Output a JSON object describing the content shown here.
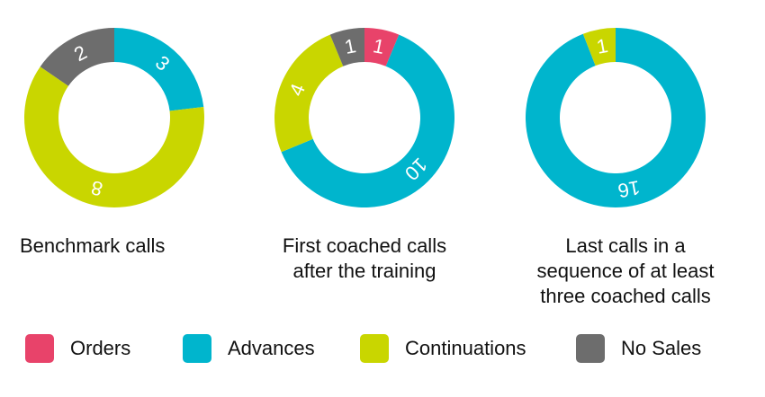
{
  "colors": {
    "orders": "#E8436A",
    "advances": "#00B5CD",
    "continuations": "#C9D600",
    "no_sales": "#6D6D6D"
  },
  "legend": [
    {
      "key": "orders",
      "label": "Orders",
      "color": "#E8436A"
    },
    {
      "key": "advances",
      "label": "Advances",
      "color": "#00B5CD"
    },
    {
      "key": "continuations",
      "label": "Continuations",
      "color": "#C9D600"
    },
    {
      "key": "no_sales",
      "label": "No Sales",
      "color": "#6D6D6D"
    }
  ],
  "captions": [
    "Benchmark calls",
    "First coached calls\nafter the training",
    "Last calls in a\nsequence of at least\nthree coached calls"
  ],
  "chart_data": [
    {
      "type": "pie",
      "title": "Benchmark calls",
      "donut": true,
      "slices": [
        {
          "label": "Advances",
          "value": 3,
          "color": "#00B5CD"
        },
        {
          "label": "Continuations",
          "value": 8,
          "color": "#C9D600"
        },
        {
          "label": "No Sales",
          "value": 2,
          "color": "#6D6D6D"
        }
      ]
    },
    {
      "type": "pie",
      "title": "First coached calls after the training",
      "donut": true,
      "slices": [
        {
          "label": "Orders",
          "value": 1,
          "color": "#E8436A"
        },
        {
          "label": "Advances",
          "value": 10,
          "color": "#00B5CD"
        },
        {
          "label": "Continuations",
          "value": 4,
          "color": "#C9D600"
        },
        {
          "label": "No Sales",
          "value": 1,
          "color": "#6D6D6D"
        }
      ]
    },
    {
      "type": "pie",
      "title": "Last calls in a sequence of at least three coached calls",
      "donut": true,
      "slices": [
        {
          "label": "Advances",
          "value": 16,
          "color": "#00B5CD"
        },
        {
          "label": "Continuations",
          "value": 1,
          "color": "#C9D600"
        }
      ]
    }
  ]
}
